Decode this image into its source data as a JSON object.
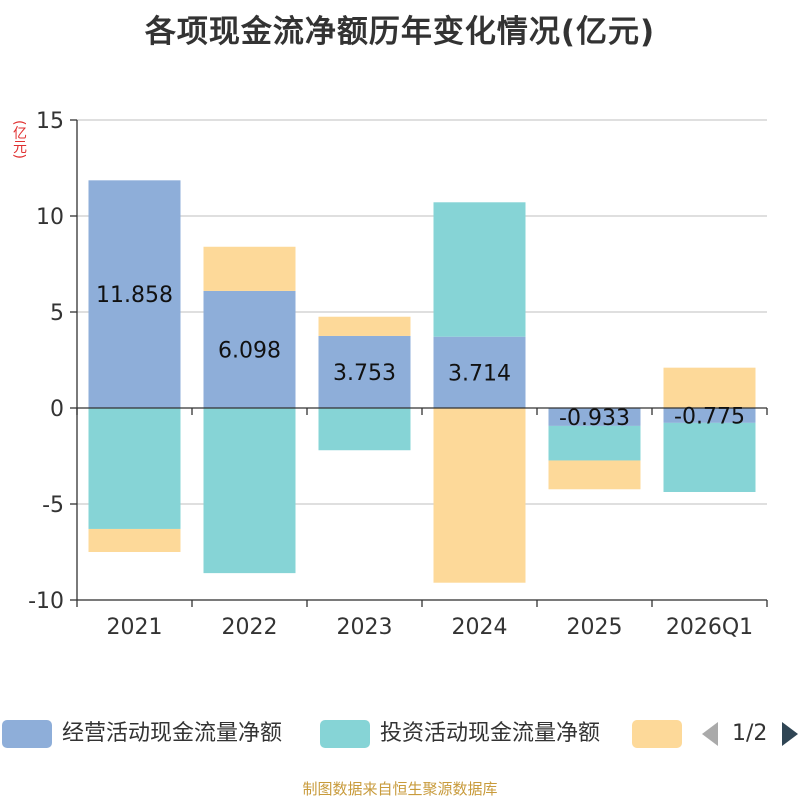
{
  "chart_data": {
    "type": "bar",
    "stacked": true,
    "title": "各项现金流净额历年变化情况(亿元)",
    "unit_label": "(亿元)",
    "categories": [
      "2021",
      "2022",
      "2023",
      "2024",
      "2025",
      "2026Q1"
    ],
    "ylim": [
      -10,
      15
    ],
    "yticks": [
      15,
      10,
      5,
      0,
      -5,
      -10
    ],
    "series": [
      {
        "name": "经营活动现金流量净额",
        "color": "#8eaed9",
        "values": [
          11.858,
          6.098,
          3.753,
          3.714,
          -0.933,
          -0.775
        ],
        "labels": [
          "11.858",
          "6.098",
          "3.753",
          "3.714",
          "-0.933",
          "-0.775"
        ]
      },
      {
        "name": "投资活动现金流量净额",
        "color": "#86d4d6",
        "values": [
          -6.3,
          -8.6,
          -2.2,
          7.0,
          -1.8,
          -3.6
        ]
      },
      {
        "name": "",
        "color": "#fdd999",
        "values": [
          -1.2,
          2.3,
          1.0,
          -9.1,
          -1.5,
          2.1
        ]
      }
    ],
    "grid": true,
    "legend": "bottom"
  },
  "legend_page": "1/2",
  "source": "制图数据来自恒生聚源数据库"
}
